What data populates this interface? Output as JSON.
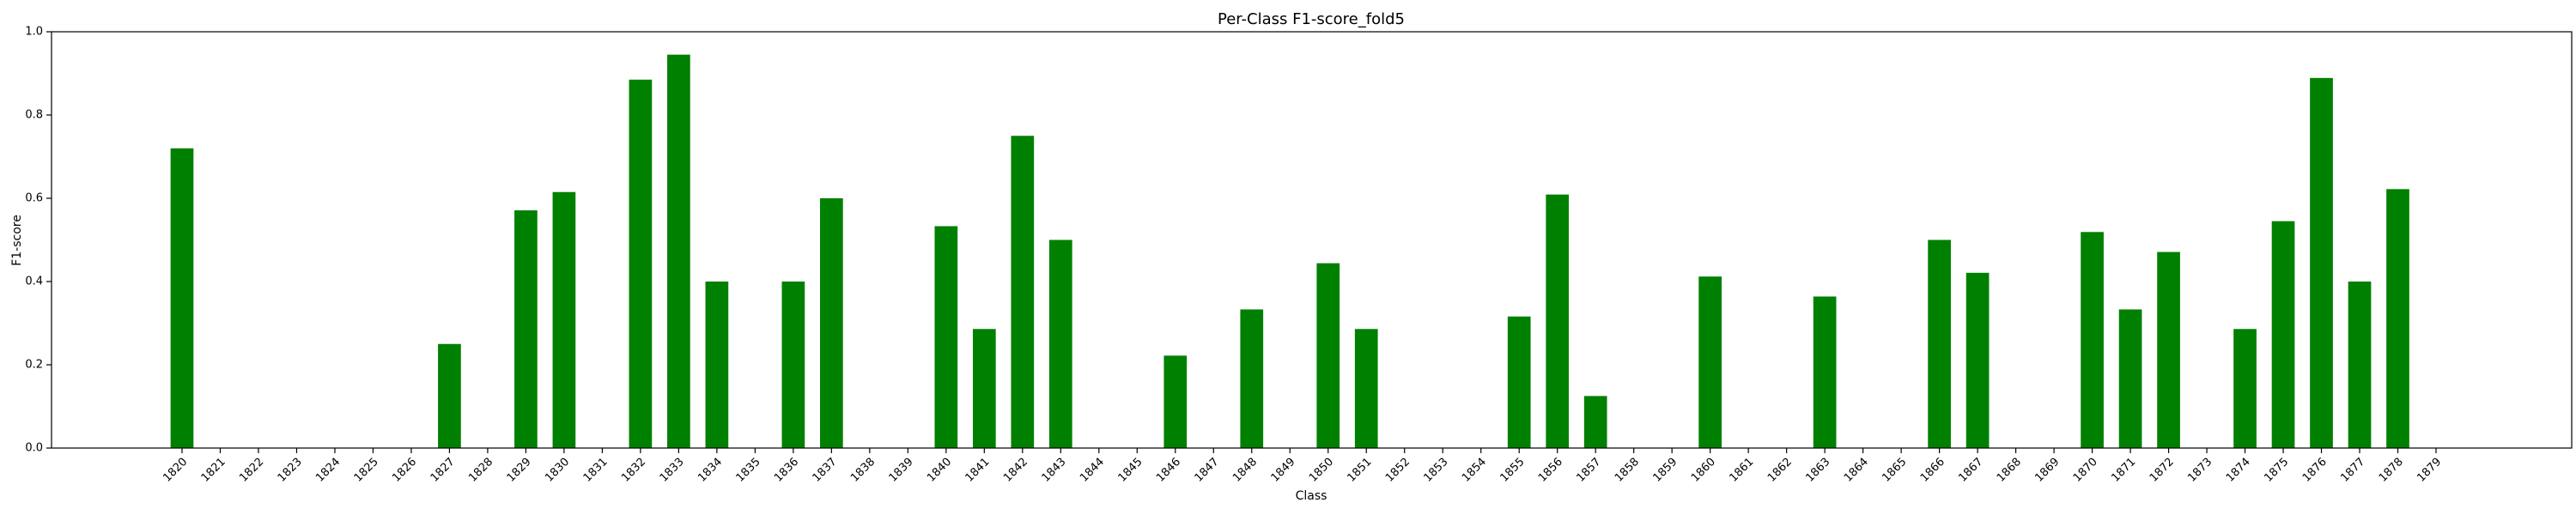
{
  "chart_data": {
    "type": "bar",
    "title": "Per-Class F1-score_fold5",
    "xlabel": "Class",
    "ylabel": "F1-score",
    "ylim": [
      0,
      1.0
    ],
    "yticks": [
      "0.0",
      "0.2",
      "0.4",
      "0.6",
      "0.8",
      "1.0"
    ],
    "grid": false,
    "bar_color": "#008000",
    "categories": [
      "1820",
      "1821",
      "1822",
      "1823",
      "1824",
      "1825",
      "1826",
      "1827",
      "1828",
      "1829",
      "1830",
      "1831",
      "1832",
      "1833",
      "1834",
      "1835",
      "1836",
      "1837",
      "1838",
      "1839",
      "1840",
      "1841",
      "1842",
      "1843",
      "1844",
      "1845",
      "1846",
      "1847",
      "1848",
      "1849",
      "1850",
      "1851",
      "1852",
      "1853",
      "1854",
      "1855",
      "1856",
      "1857",
      "1858",
      "1859",
      "1860",
      "1861",
      "1862",
      "1863",
      "1864",
      "1865",
      "1866",
      "1867",
      "1868",
      "1869",
      "1870",
      "1871",
      "1872",
      "1873",
      "1874",
      "1875",
      "1876",
      "1877",
      "1878",
      "1879"
    ],
    "values": [
      0.72,
      0,
      0,
      0,
      0,
      0,
      0,
      0.25,
      0,
      0.571,
      0.615,
      0,
      0.885,
      0.945,
      0.4,
      0,
      0.4,
      0.6,
      0,
      0,
      0.533,
      0.286,
      0.75,
      0.5,
      0,
      0,
      0.222,
      0,
      0.333,
      0,
      0.444,
      0.286,
      0,
      0,
      0,
      0.316,
      0.609,
      0.125,
      0,
      0,
      0.412,
      0,
      0,
      0.364,
      0,
      0,
      0.5,
      0.421,
      0,
      0,
      0.519,
      0.333,
      0.471,
      0,
      0.286,
      0.545,
      0.889,
      0.4,
      0.622,
      0
    ]
  }
}
